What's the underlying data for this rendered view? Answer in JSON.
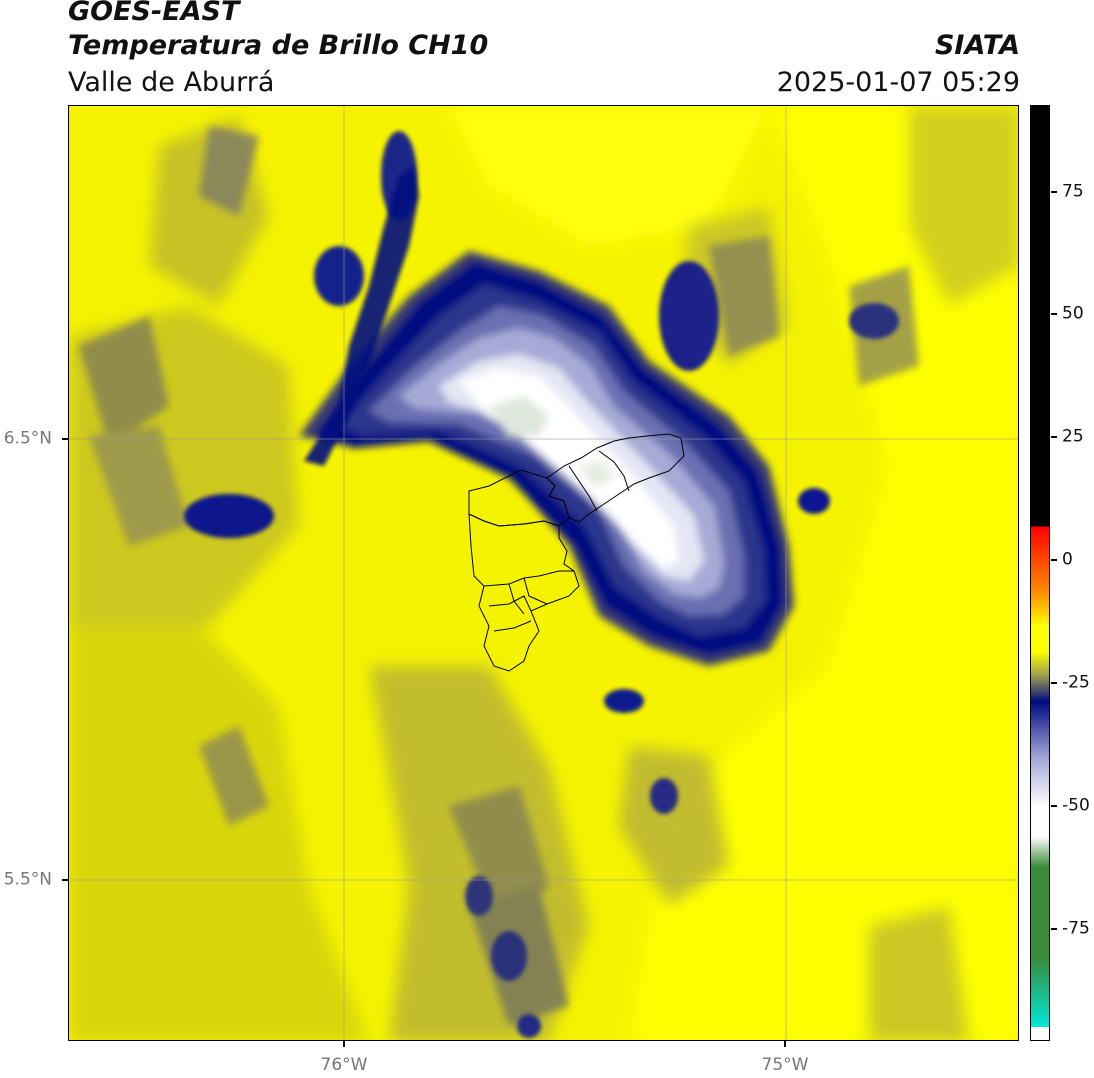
{
  "header": {
    "satellite": "GOES-EAST",
    "product": "Temperatura de Brillo CH10",
    "region": "Valle de Aburrá",
    "organization": "SIATA",
    "timestamp": "2025-01-07 05:29"
  },
  "map": {
    "gridlines": true,
    "lat_labels": [
      "6.5°N",
      "5.5°N"
    ],
    "lon_labels": [
      "76°W",
      "75°W"
    ],
    "extent": {
      "lon_min": -76.62,
      "lon_max": -74.53,
      "lat_min": 5.13,
      "lat_max": 7.25
    }
  },
  "colorbar": {
    "min": -95,
    "max": 92,
    "tick_values": [
      75,
      50,
      25,
      0,
      -25,
      -50,
      -75
    ],
    "tick_labels": [
      "75",
      "50",
      "25",
      "0",
      "-25",
      "-50",
      "-75"
    ],
    "colors": {
      "above_max": "#000000",
      "warm_top": "#ff0000",
      "warm_orange": "#ff8a00",
      "yellow": "#ffff00",
      "olive": "#9a9a50",
      "navy": "#000a80",
      "lavender": "#a0a4d4",
      "white": "#ffffff",
      "green": "#3a8a3a",
      "cyan": "#00e8d8",
      "below_min": "#ffffff"
    }
  }
}
